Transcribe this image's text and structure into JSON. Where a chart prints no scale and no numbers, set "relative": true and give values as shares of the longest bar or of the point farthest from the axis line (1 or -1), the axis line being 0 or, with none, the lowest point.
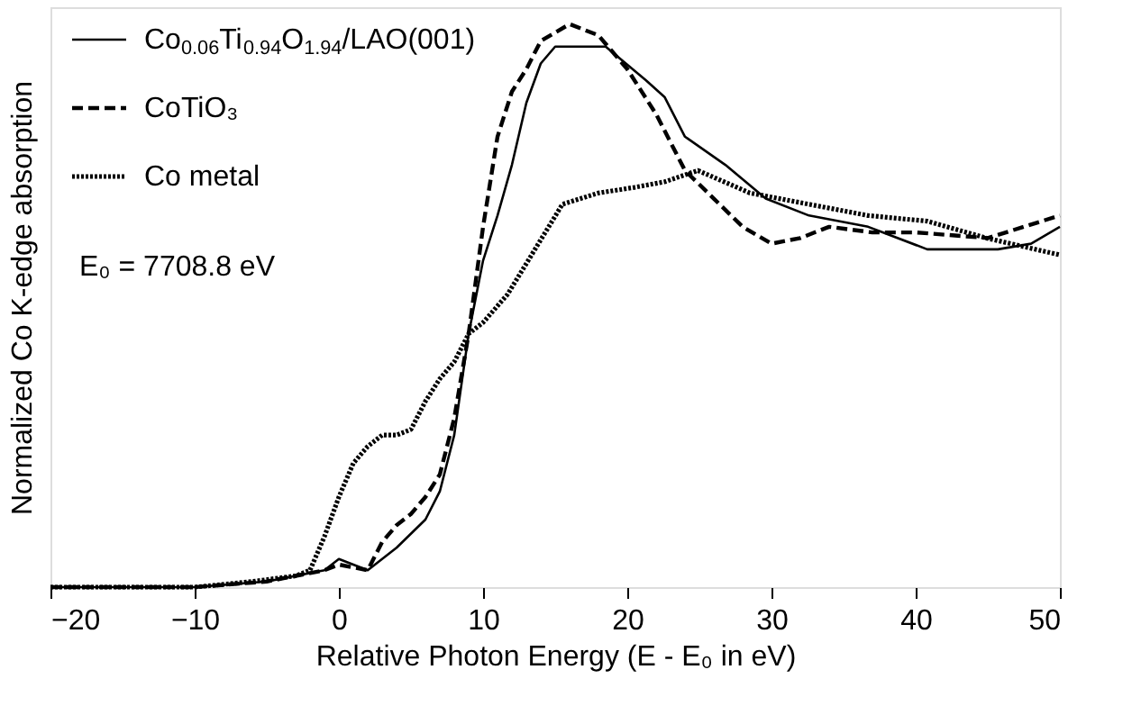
{
  "chart_data": {
    "type": "line",
    "relative": true,
    "xlabel": "Relative Photon Energy (E - E₀ in eV)",
    "ylabel": "Normalized Co K-edge absorption",
    "xlim": [
      -20,
      50
    ],
    "xticks": [
      -20,
      -10,
      0,
      10,
      20,
      30,
      40,
      50
    ],
    "grid": false,
    "legend": "top left",
    "tick_labels": "x",
    "annotations": [
      "E₀ = 7708.8 eV"
    ],
    "series": [
      {
        "name": "Co$_{0.06}$Ti$_{0.94}$O$_{1.94}$/LAO(001)",
        "color": "#000000",
        "line_style": "solid",
        "x": [
          -20,
          -10,
          -5,
          -3,
          -1,
          0,
          1,
          2,
          4,
          6,
          7,
          8,
          9,
          10,
          11,
          12,
          13,
          14,
          15,
          16,
          18.5,
          21.3,
          22.6,
          24,
          26.8,
          29.6,
          32.6,
          36.7,
          40.8,
          45.7,
          48,
          50
        ],
        "values": [
          0.0,
          0.0,
          0.01,
          0.02,
          0.03,
          0.05,
          0.04,
          0.03,
          0.07,
          0.12,
          0.17,
          0.27,
          0.45,
          0.58,
          0.66,
          0.75,
          0.86,
          0.93,
          0.96,
          0.96,
          0.96,
          0.9,
          0.87,
          0.8,
          0.75,
          0.69,
          0.66,
          0.64,
          0.6,
          0.6,
          0.61,
          0.64
        ]
      },
      {
        "name": "CoTiO₃",
        "color": "#000000",
        "line_style": "dashed",
        "x": [
          -20,
          -10,
          -5,
          -3,
          -1,
          0,
          2,
          3,
          4,
          5,
          6,
          7,
          8,
          9,
          10,
          11,
          12,
          13,
          14,
          16,
          18,
          20,
          22,
          24,
          26,
          28,
          30,
          32,
          34,
          37,
          40,
          45,
          50
        ],
        "values": [
          0.0,
          0.0,
          0.01,
          0.02,
          0.03,
          0.04,
          0.03,
          0.08,
          0.11,
          0.13,
          0.16,
          0.2,
          0.3,
          0.45,
          0.64,
          0.8,
          0.88,
          0.92,
          0.97,
          1.0,
          0.98,
          0.92,
          0.84,
          0.74,
          0.69,
          0.64,
          0.61,
          0.62,
          0.64,
          0.63,
          0.63,
          0.62,
          0.66
        ]
      },
      {
        "name": "Co metal",
        "color": "#000000",
        "line_style": "dotted",
        "x": [
          -20,
          -10,
          -6,
          -3,
          -2,
          -1,
          0,
          1,
          2,
          3,
          4,
          5,
          6,
          7,
          8,
          9,
          10,
          11.7,
          13.6,
          15.5,
          18,
          20.5,
          22.6,
          24.9,
          28.5,
          32.6,
          36.7,
          40.8,
          44.9,
          50
        ],
        "values": [
          0.0,
          0.0,
          0.01,
          0.02,
          0.03,
          0.09,
          0.16,
          0.22,
          0.25,
          0.27,
          0.27,
          0.28,
          0.33,
          0.37,
          0.4,
          0.45,
          0.47,
          0.52,
          0.6,
          0.68,
          0.7,
          0.71,
          0.72,
          0.74,
          0.7,
          0.68,
          0.66,
          0.65,
          0.62,
          0.59
        ]
      }
    ]
  }
}
